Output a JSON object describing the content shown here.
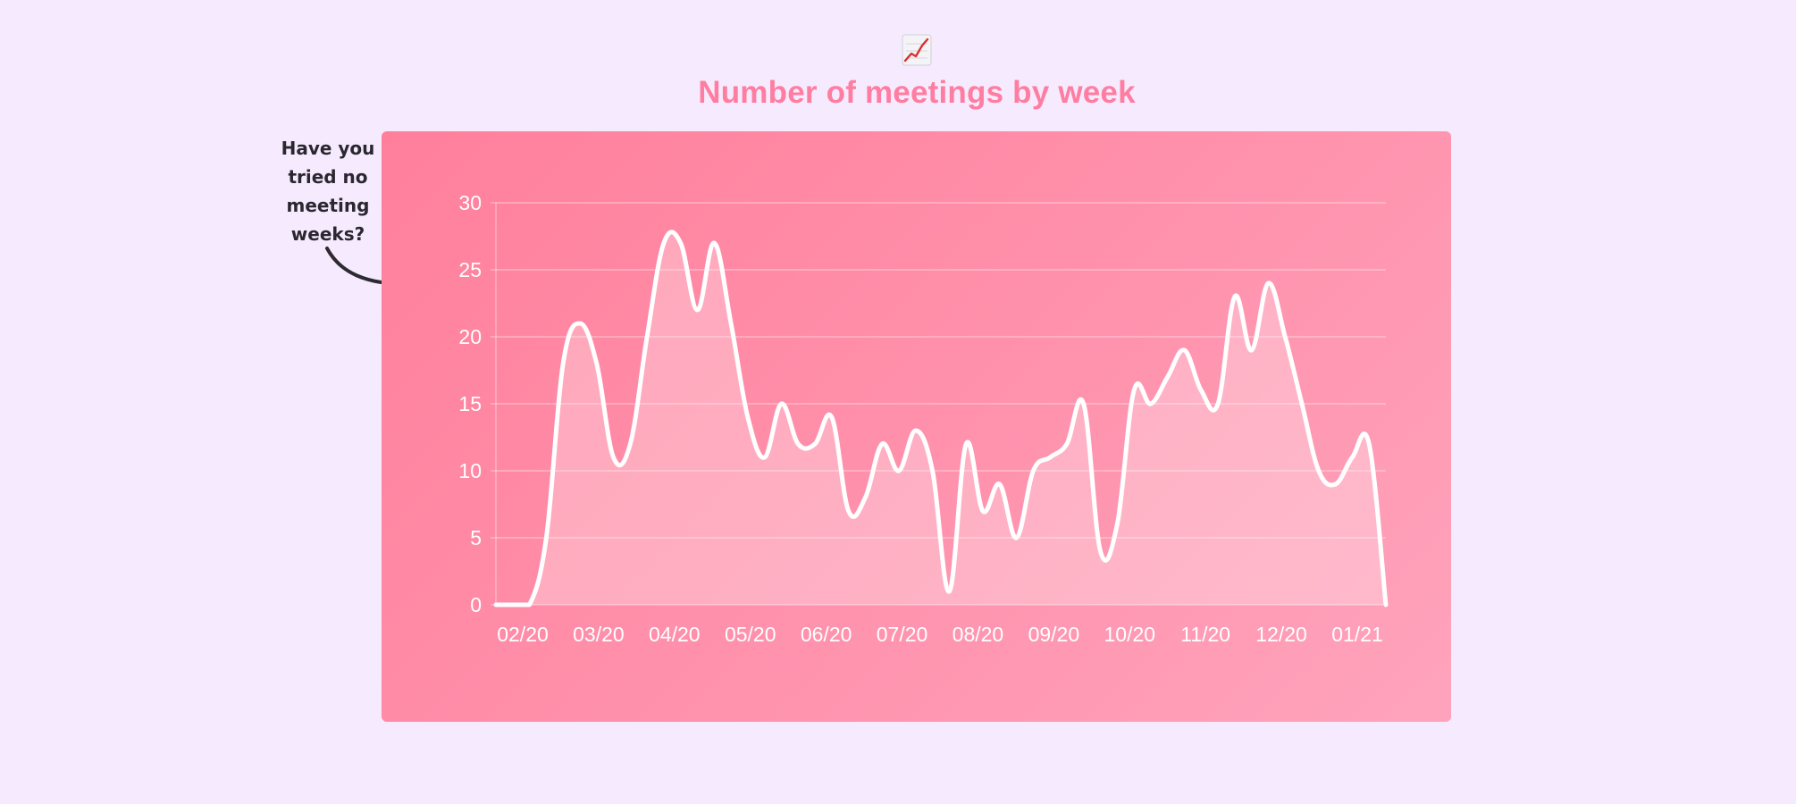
{
  "header": {
    "icon": "chart-increasing-icon",
    "title": "Number of meetings by week"
  },
  "annotation": {
    "lines": [
      "Have you",
      "tried no",
      "meeting",
      "weeks?"
    ],
    "arrow_icon": "curved-arrow-icon"
  },
  "colors": {
    "background": "#f6ebfe",
    "title": "#ff7da0",
    "card_start": "#ff7f9b",
    "card_end": "#ffa3bc",
    "line": "#ffffff",
    "annotation_text": "#2b2730"
  },
  "chart_data": {
    "type": "area",
    "title": "Number of meetings by week",
    "xlabel": "",
    "ylabel": "",
    "ylim": [
      0,
      30
    ],
    "yticks": [
      0,
      5,
      10,
      15,
      20,
      25,
      30
    ],
    "grid": true,
    "smooth": true,
    "x_tick_labels": [
      "02/20",
      "03/20",
      "04/20",
      "05/20",
      "06/20",
      "07/20",
      "08/20",
      "09/20",
      "10/20",
      "11/20",
      "12/20",
      "01/21"
    ],
    "series": [
      {
        "values": [
          0,
          0,
          0,
          5,
          18,
          21,
          18,
          11,
          12,
          20,
          27,
          27,
          22,
          27,
          21,
          14,
          11,
          15,
          12,
          12,
          14,
          7,
          8,
          12,
          10,
          13,
          10,
          1,
          12,
          7,
          9,
          5,
          10,
          11,
          12,
          15,
          4,
          6,
          16,
          15,
          17,
          19,
          16,
          15,
          23,
          19,
          24,
          20,
          15,
          10,
          9,
          11,
          12,
          0
        ]
      }
    ]
  }
}
